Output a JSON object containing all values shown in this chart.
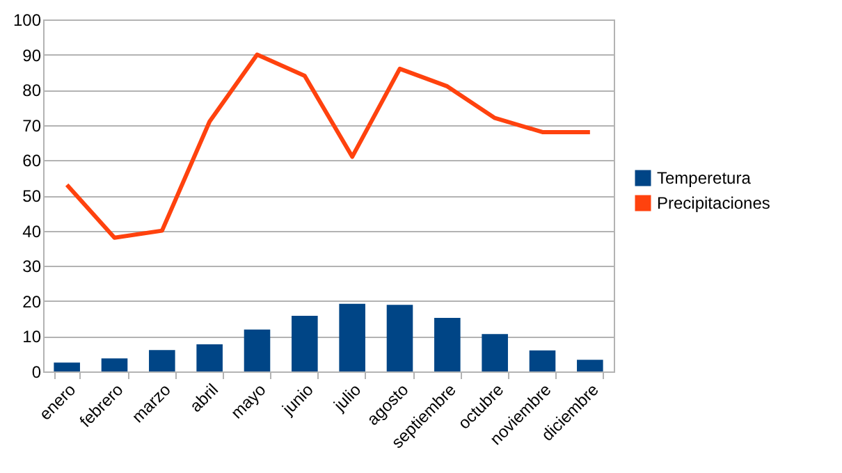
{
  "chart_data": {
    "type": "bar",
    "categories": [
      "enero",
      "febrero",
      "marzo",
      "abril",
      "mayo",
      "junio",
      "julio",
      "agosto",
      "septiembre",
      "octubre",
      "noviembre",
      "diciembre"
    ],
    "series": [
      {
        "name": "Temperetura",
        "color": "#004586",
        "values": [
          2.5,
          3.7,
          6.1,
          7.7,
          11.9,
          15.8,
          19.2,
          18.9,
          15.2,
          10.6,
          6.0,
          3.3
        ]
      },
      {
        "name": "Precipitaciones",
        "type": "line",
        "color": "#ff420e",
        "values": [
          53,
          38,
          40,
          71,
          90,
          84,
          61,
          86,
          81,
          72,
          68,
          68
        ]
      }
    ],
    "ylim": [
      0,
      100
    ],
    "yticks": [
      0,
      10,
      20,
      30,
      40,
      50,
      60,
      70,
      80,
      90,
      100
    ],
    "grid": "y",
    "legend": "right",
    "marker": "none"
  }
}
